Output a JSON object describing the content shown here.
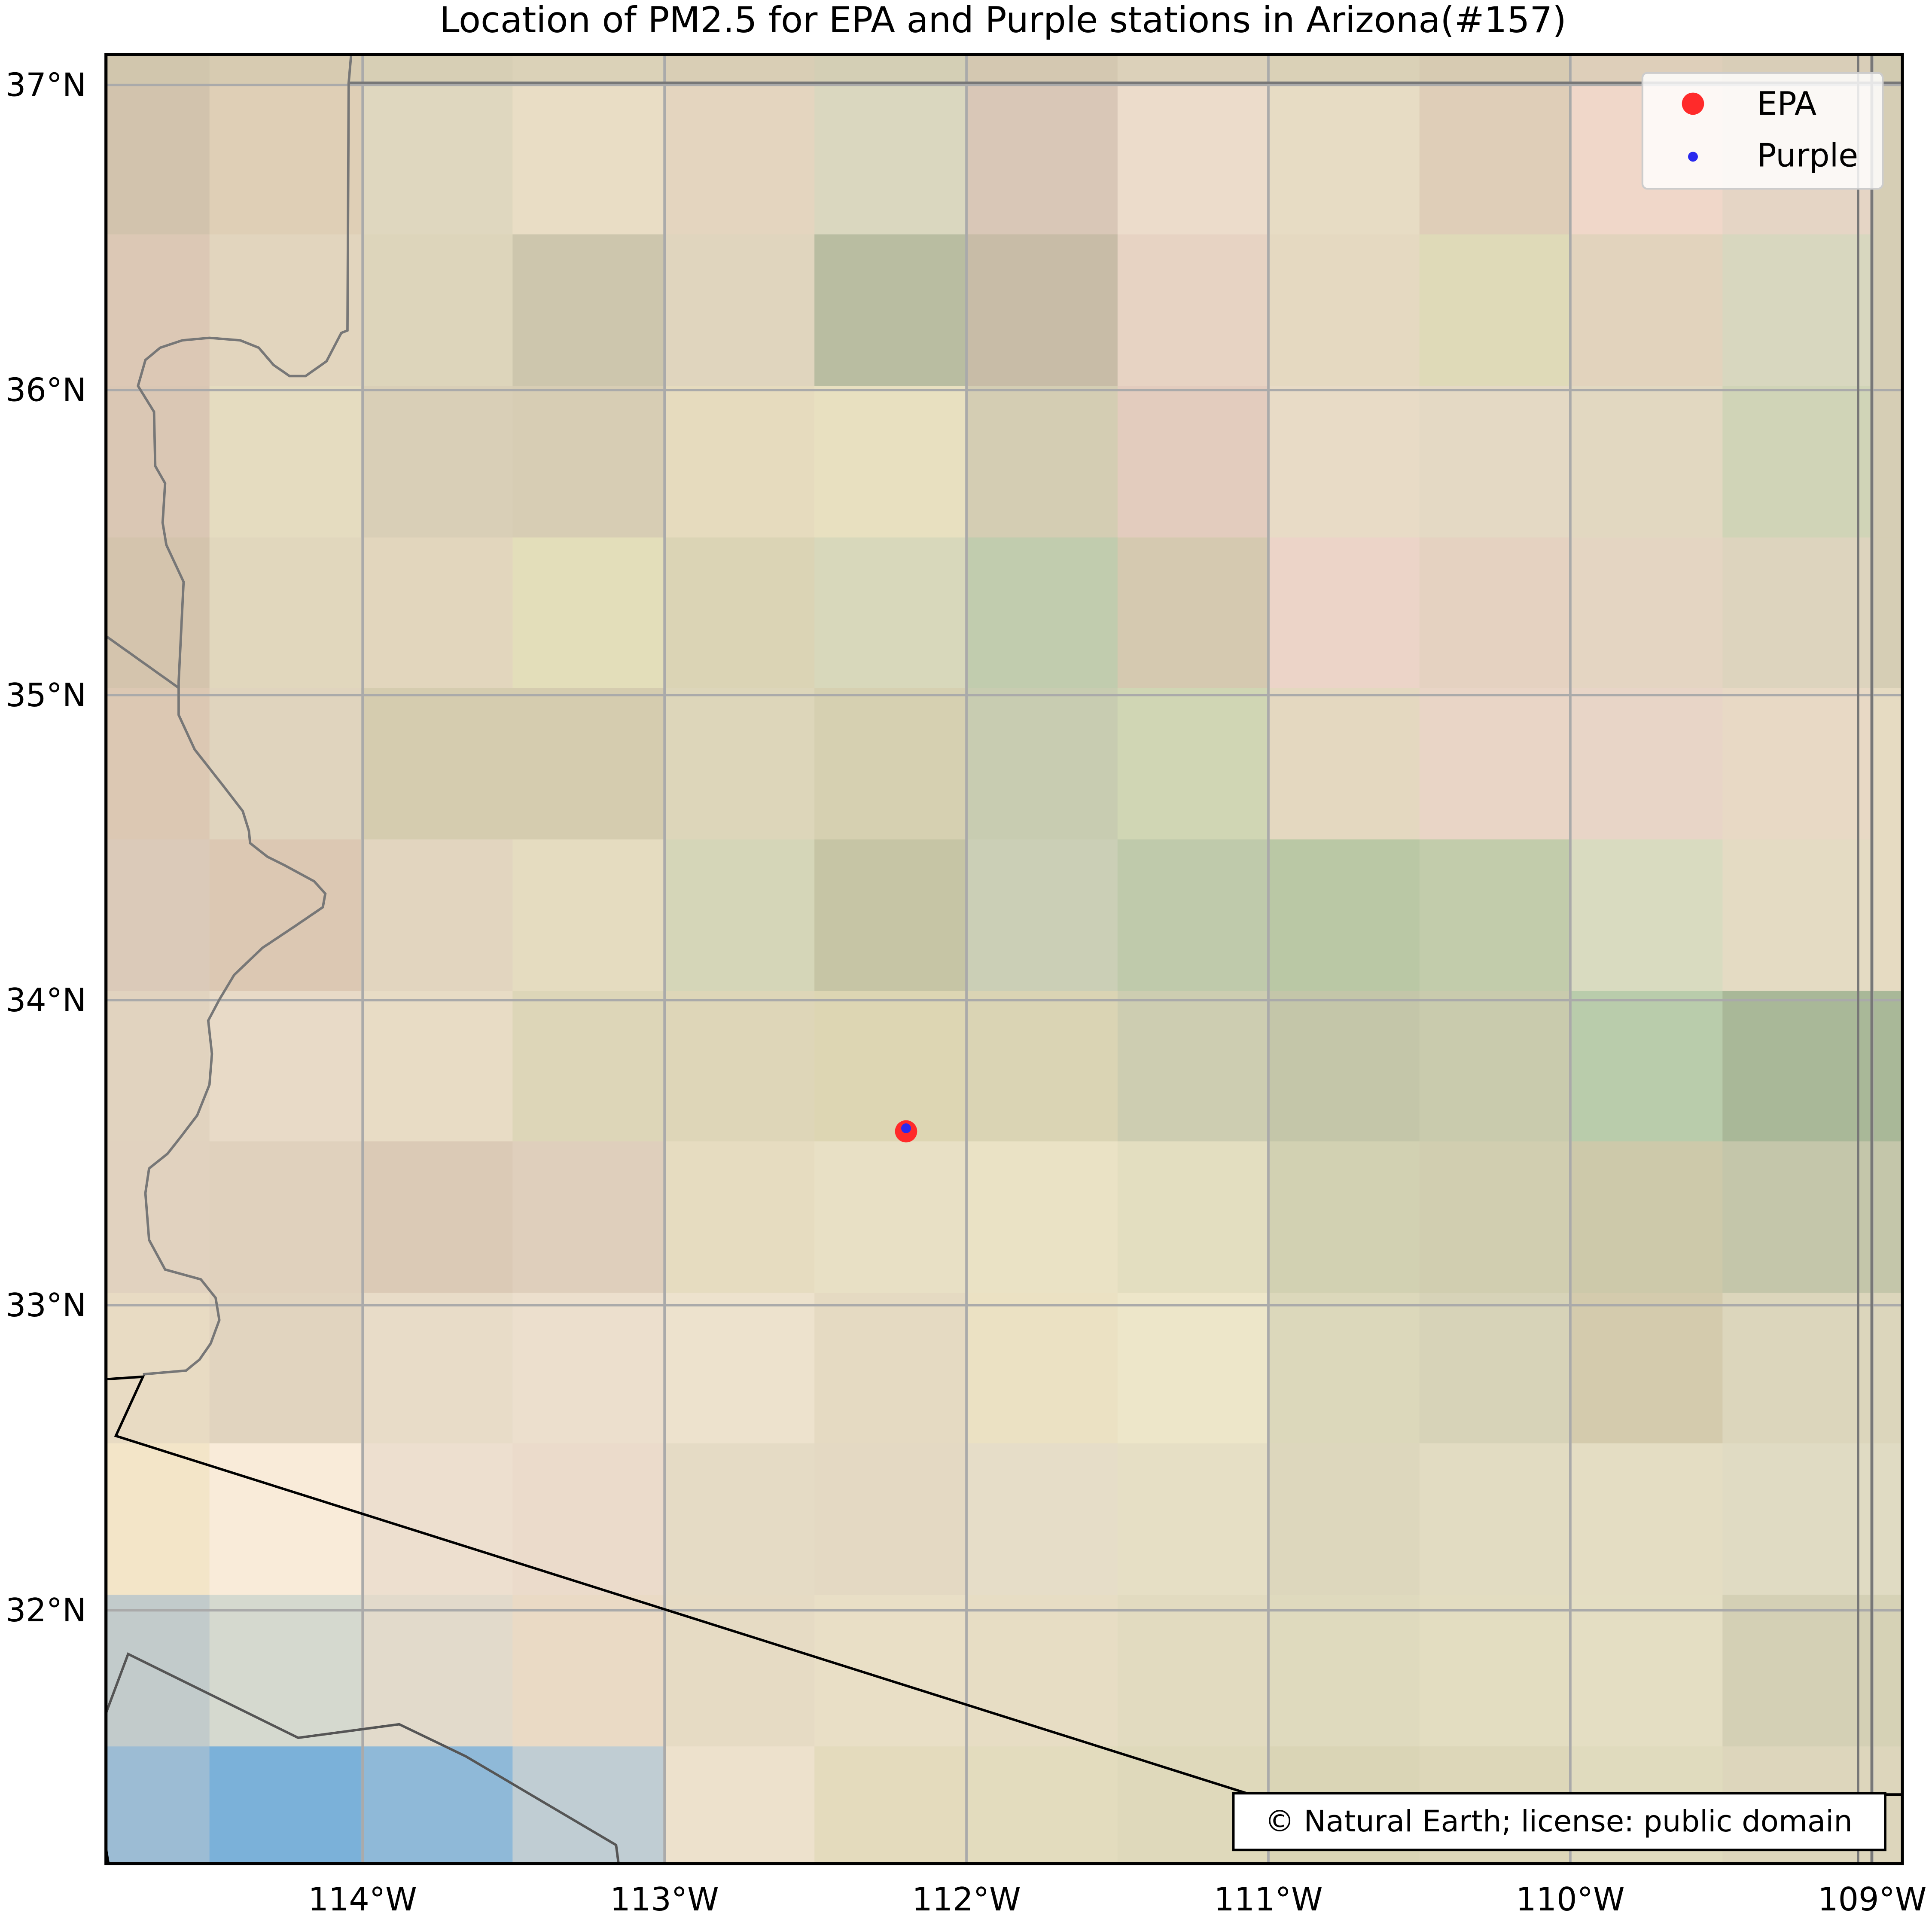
{
  "title": "Location of PM2.5 for EPA and Purple stations in Arizona(#157)",
  "attribution": "© Natural Earth; license: public domain",
  "legend": {
    "placement": "upper-right",
    "items": [
      {
        "label": "EPA",
        "color": "#ff2a2a",
        "marker": "large-circle"
      },
      {
        "label": "Purple",
        "color": "#2a2aee",
        "marker": "small-circle"
      }
    ]
  },
  "map": {
    "extent": {
      "lon": [
        -114.85,
        -108.9
      ],
      "lat": [
        31.17,
        37.1
      ]
    },
    "x_ticks": [
      {
        "value": -114,
        "label": "114°W"
      },
      {
        "value": -113,
        "label": "113°W"
      },
      {
        "value": -112,
        "label": "112°W"
      },
      {
        "value": -111,
        "label": "111°W"
      },
      {
        "value": -110,
        "label": "110°W"
      },
      {
        "value": -109,
        "label": "109°W"
      }
    ],
    "y_ticks": [
      {
        "value": 37,
        "label": "37°N"
      },
      {
        "value": 36,
        "label": "36°N"
      },
      {
        "value": 35,
        "label": "35°N"
      },
      {
        "value": 34,
        "label": "34°N"
      },
      {
        "value": 33,
        "label": "33°N"
      },
      {
        "value": 32,
        "label": "32°N"
      }
    ],
    "gridlines": true,
    "colors": {
      "gridline": "#aaaaaa",
      "state_border": "#777777",
      "country_border": "#000000",
      "frame": "#000000"
    }
  },
  "chart_data": {
    "type": "scatter",
    "series": [
      {
        "name": "EPA",
        "color": "#ff2a2a",
        "points": [
          {
            "lon": -112.2,
            "lat": 33.57
          }
        ]
      },
      {
        "name": "Purple",
        "color": "#2a2aee",
        "points": [
          {
            "lon": -112.2,
            "lat": 33.58
          }
        ]
      }
    ]
  }
}
